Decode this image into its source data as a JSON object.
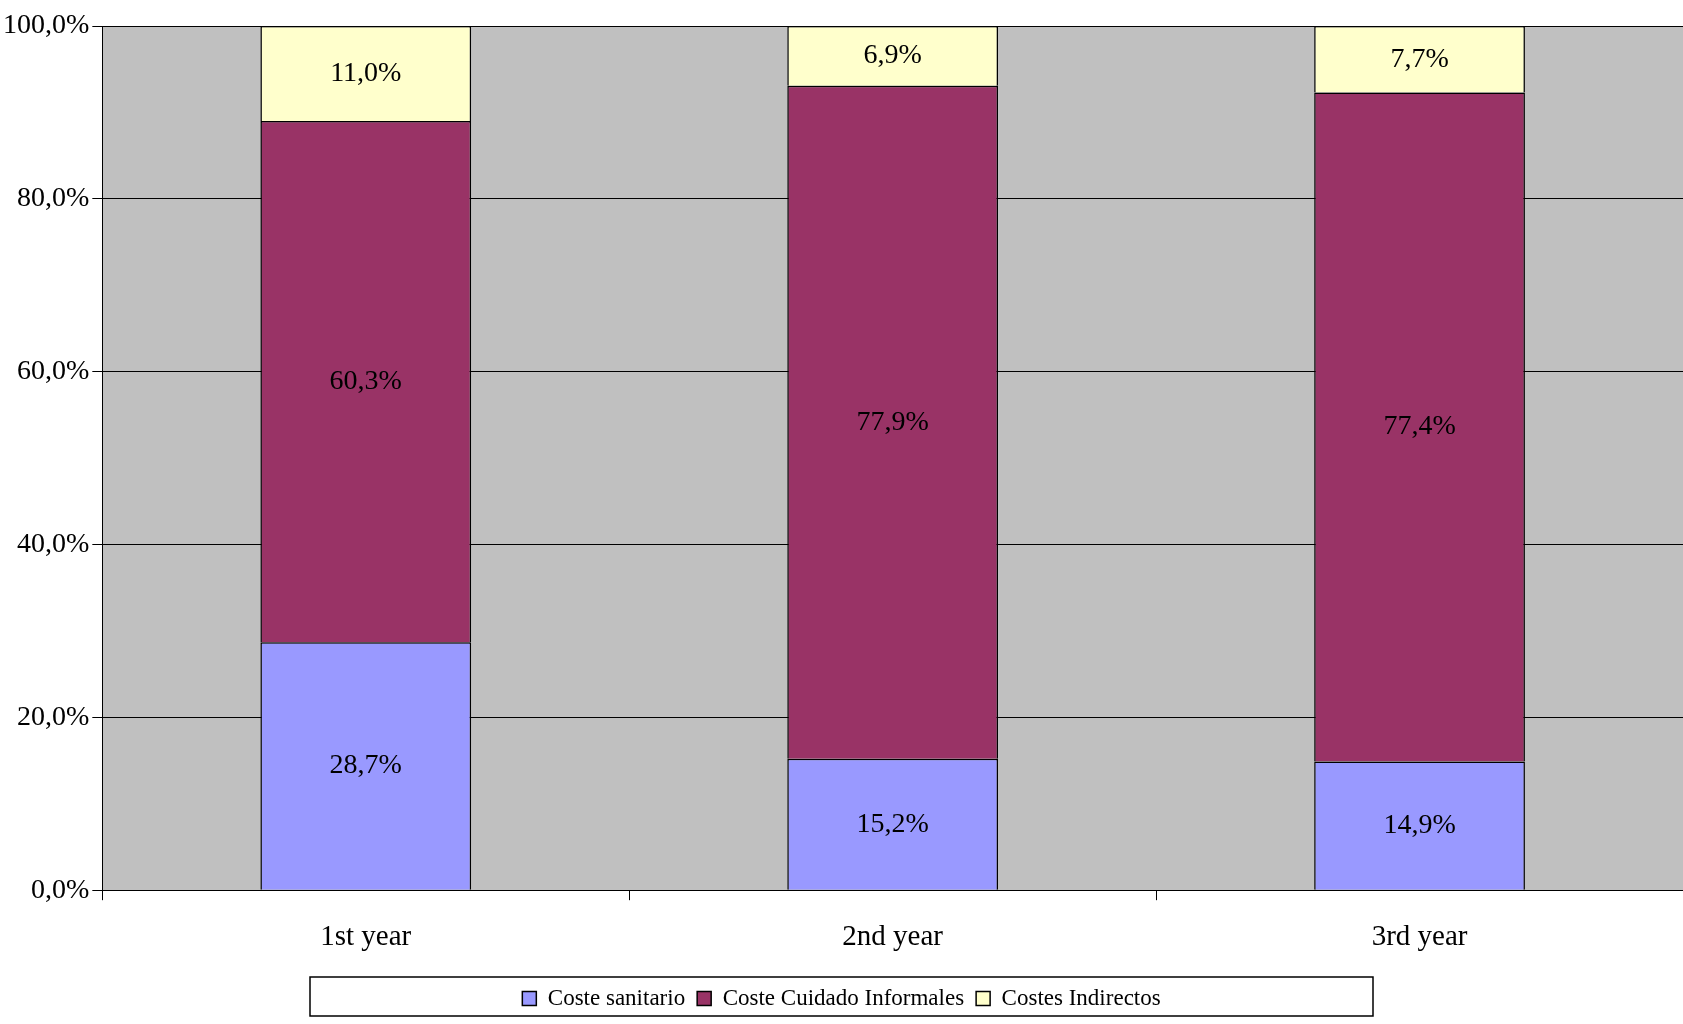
{
  "chart_data": {
    "type": "bar",
    "stacked": true,
    "categories": [
      "1st year",
      "2nd year",
      "3rd year"
    ],
    "series": [
      {
        "name": "Coste sanitario",
        "color": "#9999ff",
        "values": [
          28.7,
          15.2,
          14.9
        ],
        "value_labels": [
          "28,7%",
          "15,2%",
          "14,9%"
        ]
      },
      {
        "name": "Coste Cuidado Informales",
        "color": "#993366",
        "values": [
          60.3,
          77.9,
          77.4
        ],
        "value_labels": [
          "60,3%",
          "77,9%",
          "77,4%"
        ]
      },
      {
        "name": "Costes Indirectos",
        "color": "#ffffcc",
        "values": [
          11.0,
          6.9,
          7.7
        ],
        "value_labels": [
          "11,0%",
          "6,9%",
          "7,7%"
        ]
      }
    ],
    "ylim": [
      0,
      100
    ],
    "yticks": [
      {
        "value": 0,
        "label": "0,0%"
      },
      {
        "value": 20,
        "label": "20,0%"
      },
      {
        "value": 40,
        "label": "40,0%"
      },
      {
        "value": 60,
        "label": "60,0%"
      },
      {
        "value": 80,
        "label": "80,0%"
      },
      {
        "value": 100,
        "label": "100,0%"
      }
    ],
    "grid": "y",
    "legend": "bottom"
  }
}
